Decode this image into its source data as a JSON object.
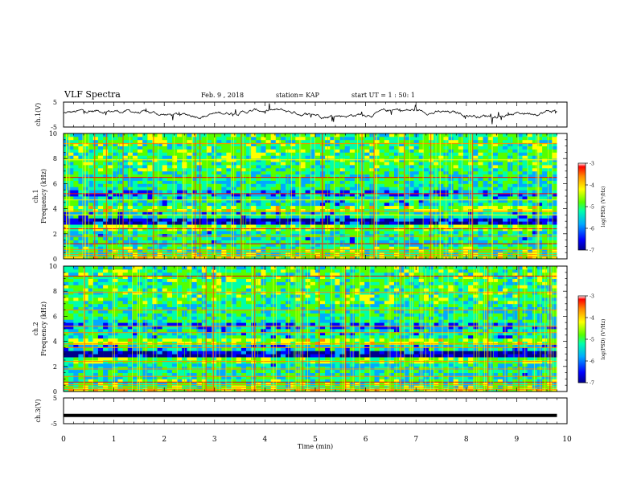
{
  "header": {
    "title": "VLF Spectra",
    "date": "Feb. 9 , 2018",
    "station": "station= KAP",
    "start_ut": "start  UT =   1 : 50: 1"
  },
  "chart_data": [
    {
      "type": "line",
      "panel": "ch1-waveform",
      "ylabel": "ch.1(V)",
      "ylim": [
        -5,
        5
      ],
      "yticks": [
        "5",
        "-5"
      ],
      "x_range_min": [
        0,
        9.8
      ],
      "trace_summary": "noisy trace fluctuating roughly between -2 and +3 V"
    },
    {
      "type": "heatmap",
      "panel": "ch1-spectrogram",
      "ylabel_line1": "ch.1",
      "ylabel_line2": "Frequency (kHz)",
      "ylim": [
        0,
        10
      ],
      "yticks": [
        "0",
        "2",
        "4",
        "6",
        "8",
        "10"
      ],
      "colorbar": {
        "label": "log(PSD) (V²/Hz)",
        "range": [
          -7,
          -3
        ],
        "ticks": [
          "-3",
          "-4",
          "-5",
          "-6",
          "-7"
        ]
      },
      "x_range_min": [
        0,
        9.8
      ]
    },
    {
      "type": "heatmap",
      "panel": "ch2-spectrogram",
      "ylabel_line1": "ch.2",
      "ylabel_line2": "Frequency (kHz)",
      "ylim": [
        0,
        10
      ],
      "yticks": [
        "0",
        "2",
        "4",
        "6",
        "8",
        "10"
      ],
      "colorbar": {
        "label": "log(PSD) (V²/Hz)",
        "range": [
          -7,
          -3
        ],
        "ticks": [
          "-3",
          "-4",
          "-5",
          "-6",
          "-7"
        ]
      },
      "x_range_min": [
        0,
        9.8
      ]
    },
    {
      "type": "line",
      "panel": "ch3-waveform",
      "ylabel": "ch.3(V)",
      "ylim": [
        -5,
        5
      ],
      "yticks": [
        "5",
        "-5"
      ],
      "value": -1.8,
      "x_range_min": [
        0,
        9.8
      ]
    }
  ],
  "xaxis": {
    "label": "Time  (min)",
    "ticks": [
      "0",
      "1",
      "2",
      "3",
      "4",
      "5",
      "6",
      "7",
      "8",
      "9",
      "10"
    ],
    "range": [
      0,
      10
    ]
  },
  "colors": {
    "background": "#ffffff",
    "axes": "#000000",
    "colormap": [
      "#00008b",
      "#0000ff",
      "#00aaff",
      "#00ffaa",
      "#55ff00",
      "#ffff00",
      "#ff8800",
      "#ff0000",
      "#ffffff"
    ]
  }
}
